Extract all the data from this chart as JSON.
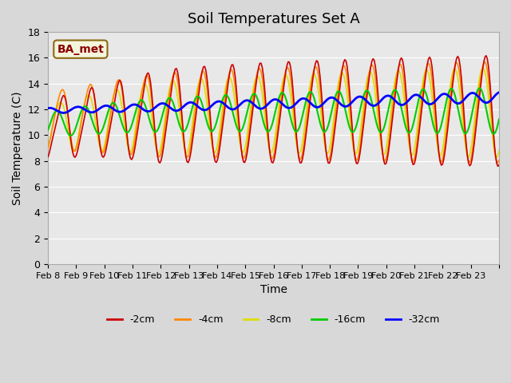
{
  "title": "Soil Temperatures Set A",
  "xlabel": "Time",
  "ylabel": "Soil Temperature (C)",
  "ylim": [
    0,
    18
  ],
  "yticks": [
    0,
    2,
    4,
    6,
    8,
    10,
    12,
    14,
    16,
    18
  ],
  "annotation": "BA_met",
  "bg_color": "#e8e8e8",
  "plot_bg_color": "#e8e8e8",
  "line_colors": {
    "-2cm": "#cc0000",
    "-4cm": "#ff8800",
    "-8cm": "#dddd00",
    "-16cm": "#00cc00",
    "-32cm": "#0000ff"
  },
  "legend_labels": [
    "-2cm",
    "-4cm",
    "-8cm",
    "-16cm",
    "-32cm"
  ],
  "xticklabels": [
    "Feb 8",
    "Feb 9",
    "Feb 10",
    "Feb 11",
    "Feb 12",
    "Feb 13",
    "Feb 14",
    "Feb 15",
    "Feb 16",
    "Feb 17",
    "Feb 18",
    "Feb 19",
    "Feb 20",
    "Feb 21",
    "Feb 22",
    "Feb 23"
  ],
  "n_days": 16,
  "start_day": 8,
  "title_fontsize": 13,
  "axis_label_fontsize": 10
}
